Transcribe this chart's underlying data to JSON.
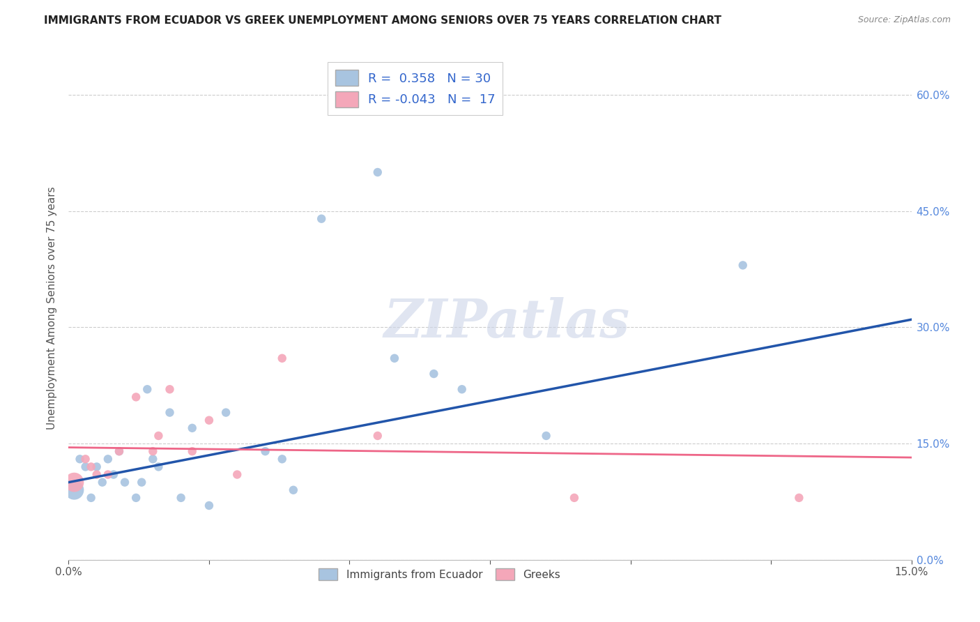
{
  "title": "IMMIGRANTS FROM ECUADOR VS GREEK UNEMPLOYMENT AMONG SENIORS OVER 75 YEARS CORRELATION CHART",
  "source": "Source: ZipAtlas.com",
  "ylabel": "Unemployment Among Seniors over 75 years",
  "xlim": [
    0.0,
    0.15
  ],
  "ylim": [
    0.0,
    0.65
  ],
  "ytick_vals": [
    0.0,
    0.15,
    0.3,
    0.45,
    0.6
  ],
  "ytick_labels_right": [
    "0.0%",
    "15.0%",
    "30.0%",
    "45.0%",
    "60.0%"
  ],
  "xtick_start_label": "0.0%",
  "xtick_end_label": "15.0%",
  "blue_color": "#a8c4e0",
  "pink_color": "#f4a7b9",
  "blue_line_color": "#2255aa",
  "pink_line_color": "#ee6688",
  "legend_text_color": "#3366cc",
  "legend_blue_r": "0.358",
  "legend_blue_n": "30",
  "legend_pink_r": "-0.043",
  "legend_pink_n": "17",
  "watermark": "ZIPatlas",
  "watermark_color": "#ccd5e8",
  "blue_points_x": [
    0.001,
    0.002,
    0.003,
    0.004,
    0.005,
    0.006,
    0.007,
    0.008,
    0.009,
    0.01,
    0.012,
    0.013,
    0.014,
    0.015,
    0.016,
    0.018,
    0.02,
    0.022,
    0.025,
    0.028,
    0.035,
    0.038,
    0.04,
    0.045,
    0.055,
    0.058,
    0.065,
    0.07,
    0.085,
    0.12
  ],
  "blue_points_y": [
    0.09,
    0.13,
    0.12,
    0.08,
    0.12,
    0.1,
    0.13,
    0.11,
    0.14,
    0.1,
    0.08,
    0.1,
    0.22,
    0.13,
    0.12,
    0.19,
    0.08,
    0.17,
    0.07,
    0.19,
    0.14,
    0.13,
    0.09,
    0.44,
    0.5,
    0.26,
    0.24,
    0.22,
    0.16,
    0.38
  ],
  "blue_points_size": [
    400,
    80,
    80,
    80,
    80,
    80,
    80,
    80,
    80,
    80,
    80,
    80,
    80,
    80,
    80,
    80,
    80,
    80,
    80,
    80,
    80,
    80,
    80,
    80,
    80,
    80,
    80,
    80,
    80,
    80
  ],
  "pink_points_x": [
    0.001,
    0.003,
    0.004,
    0.005,
    0.007,
    0.009,
    0.012,
    0.015,
    0.016,
    0.018,
    0.022,
    0.025,
    0.03,
    0.038,
    0.055,
    0.09,
    0.13
  ],
  "pink_points_y": [
    0.1,
    0.13,
    0.12,
    0.11,
    0.11,
    0.14,
    0.21,
    0.14,
    0.16,
    0.22,
    0.14,
    0.18,
    0.11,
    0.26,
    0.16,
    0.08,
    0.08
  ],
  "pink_points_size": [
    400,
    80,
    80,
    80,
    80,
    80,
    80,
    80,
    80,
    80,
    80,
    80,
    80,
    80,
    80,
    80,
    80
  ],
  "blue_trend_x": [
    0.0,
    0.15
  ],
  "blue_trend_y": [
    0.1,
    0.31
  ],
  "pink_trend_x": [
    0.0,
    0.15
  ],
  "pink_trend_y": [
    0.145,
    0.132
  ]
}
